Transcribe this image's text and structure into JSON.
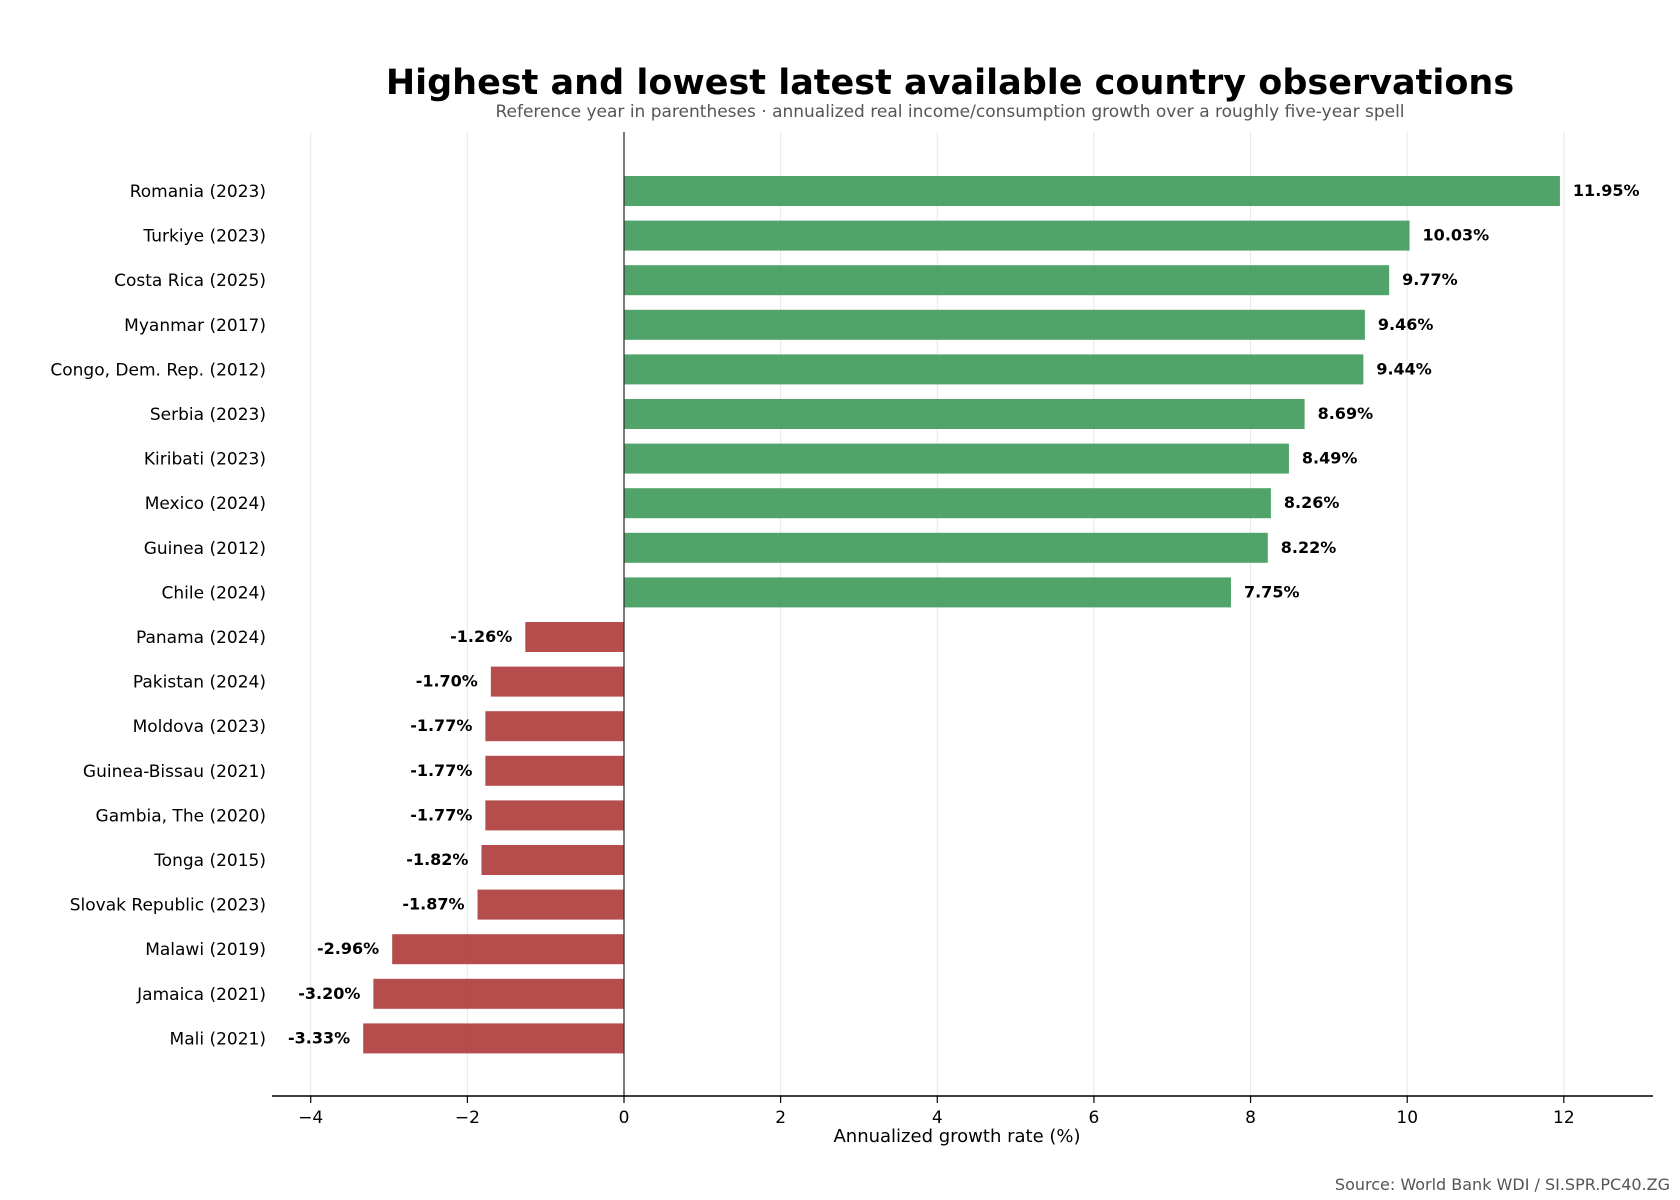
{
  "chart_data": {
    "type": "bar",
    "orientation": "horizontal",
    "title": "Highest and lowest latest available country observations",
    "subtitle": "Reference year in parentheses · annualized real income/consumption growth over a roughly five-year spell",
    "xlabel": "Annualized growth rate (%)",
    "ylabel": "",
    "xlim": [
      -4.5,
      13.1
    ],
    "xticks": [
      -4,
      -2,
      0,
      2,
      4,
      6,
      8,
      10,
      12
    ],
    "xtick_labels": [
      "−4",
      "−2",
      "0",
      "2",
      "4",
      "6",
      "8",
      "10",
      "12"
    ],
    "grid": "vertical",
    "categories": [
      "Romania (2023)",
      "Turkiye (2023)",
      "Costa Rica (2025)",
      "Myanmar (2017)",
      "Congo, Dem. Rep. (2012)",
      "Serbia (2023)",
      "Kiribati (2023)",
      "Mexico (2024)",
      "Guinea (2012)",
      "Chile (2024)",
      "Panama (2024)",
      "Pakistan (2024)",
      "Moldova (2023)",
      "Guinea-Bissau (2021)",
      "Gambia, The (2020)",
      "Tonga (2015)",
      "Slovak Republic (2023)",
      "Malawi (2019)",
      "Jamaica (2021)",
      "Mali (2021)"
    ],
    "values": [
      11.95,
      10.03,
      9.77,
      9.46,
      9.44,
      8.69,
      8.49,
      8.26,
      8.22,
      7.75,
      -1.26,
      -1.7,
      -1.77,
      -1.77,
      -1.77,
      -1.82,
      -1.87,
      -2.96,
      -3.2,
      -3.33
    ],
    "value_labels": [
      "11.95%",
      "10.03%",
      "9.77%",
      "9.46%",
      "9.44%",
      "8.69%",
      "8.49%",
      "8.26%",
      "8.22%",
      "7.75%",
      "-1.26%",
      "-1.70%",
      "-1.77%",
      "-1.77%",
      "-1.77%",
      "-1.82%",
      "-1.87%",
      "-2.96%",
      "-3.20%",
      "-3.33%"
    ],
    "colors": {
      "positive": "#3d9a5a",
      "negative": "#ad3a3a"
    },
    "source": "Source: World Bank WDI / SI.SPR.PC40.ZG"
  }
}
